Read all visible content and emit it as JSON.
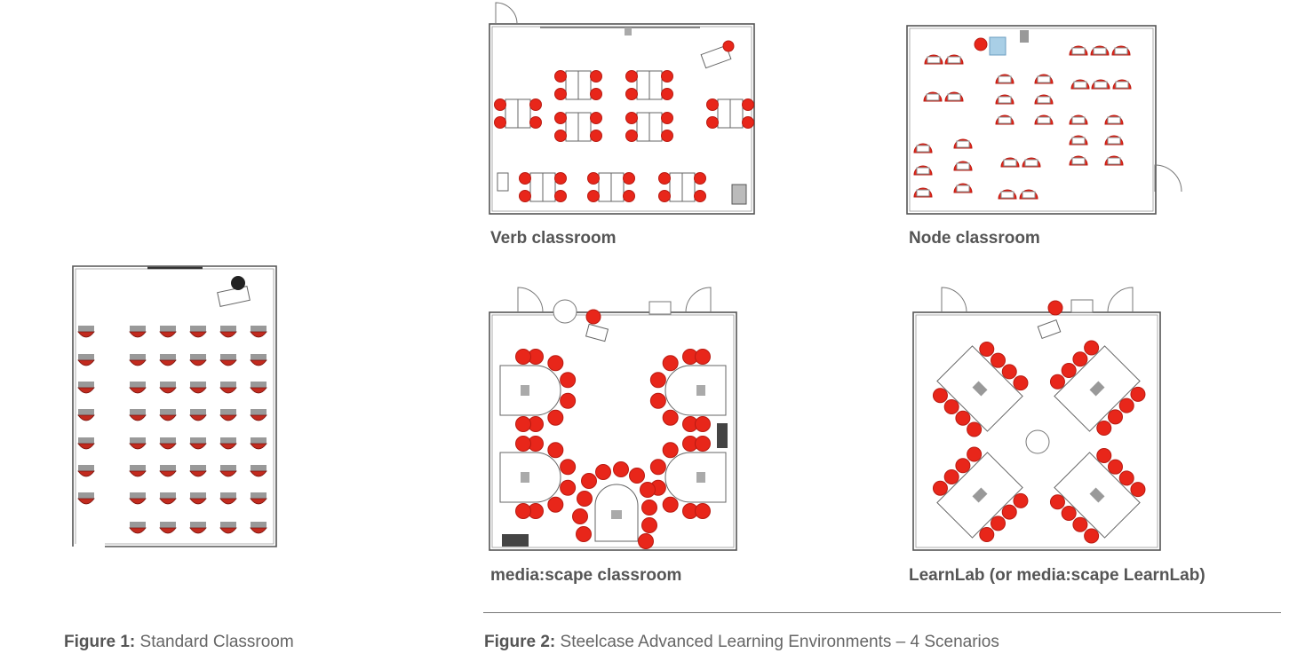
{
  "figure1": {
    "caption_prefix": "Figure 1:",
    "caption_text": "Standard Classroom"
  },
  "figure2": {
    "caption_prefix": "Figure 2:",
    "caption_text": "Steelcase Advanced Learning Environments – 4 Scenarios",
    "scenarios": [
      {
        "label": "Verb classroom"
      },
      {
        "label": "Node classroom"
      },
      {
        "label": "media:scape classroom"
      },
      {
        "label": "LearnLab (or media:scape LearnLab)"
      }
    ]
  },
  "colors": {
    "chair": "#e8261a",
    "chair_dark": "#b91b12",
    "wall": "#555555",
    "desk_grey": "#9a9a9a",
    "screen": "#a9cfe6"
  }
}
